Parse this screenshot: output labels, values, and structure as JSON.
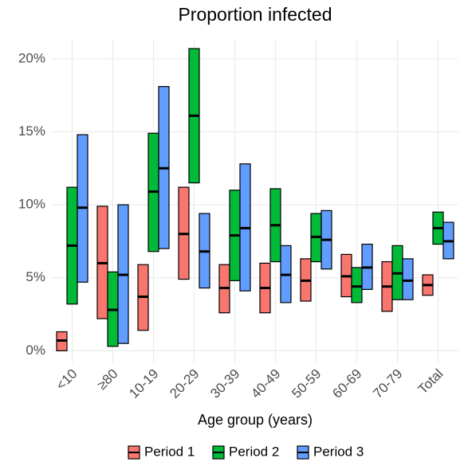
{
  "chart_data": {
    "type": "crossbar",
    "title": "Proportion infected",
    "x_label": "Age group (years)",
    "categories": [
      "<10",
      "≥80",
      "10-19",
      "20-29",
      "30-39",
      "40-49",
      "50-59",
      "60-69",
      "70-79",
      "Total"
    ],
    "series": [
      {
        "name": "Period 1",
        "color": "#f8766d",
        "low": [
          0,
          2.2,
          1.4,
          4.9,
          2.6,
          2.6,
          3.4,
          3.7,
          2.7,
          3.8
        ],
        "values": [
          0.7,
          6.0,
          3.7,
          8.0,
          4.3,
          4.3,
          4.8,
          5.1,
          4.4,
          4.5
        ],
        "high": [
          1.3,
          9.9,
          5.9,
          11.2,
          5.9,
          6.0,
          6.3,
          6.6,
          6.1,
          5.2
        ]
      },
      {
        "name": "Period 2",
        "color": "#00ba38",
        "low": [
          3.2,
          0.3,
          6.8,
          11.5,
          4.8,
          6.1,
          6.1,
          3.3,
          3.5,
          7.3
        ],
        "values": [
          7.2,
          2.8,
          10.9,
          16.1,
          7.9,
          8.6,
          7.8,
          4.4,
          5.3,
          8.4
        ],
        "high": [
          11.2,
          5.4,
          14.9,
          20.7,
          11.0,
          11.1,
          9.4,
          5.7,
          7.2,
          9.5
        ]
      },
      {
        "name": "Period 3",
        "color": "#619cff",
        "low": [
          4.7,
          0.5,
          7.0,
          4.3,
          4.1,
          3.3,
          5.6,
          4.2,
          3.5,
          6.3
        ],
        "values": [
          9.8,
          5.2,
          12.5,
          6.8,
          8.4,
          5.2,
          7.6,
          5.7,
          4.8,
          7.5
        ],
        "high": [
          14.8,
          10.0,
          18.1,
          9.4,
          12.8,
          7.2,
          9.6,
          7.3,
          6.3,
          8.8
        ]
      }
    ],
    "ylim": [
      -0.8,
      21.3
    ],
    "yticks": [
      {
        "value": 0,
        "label": "0%"
      },
      {
        "value": 5,
        "label": "5%"
      },
      {
        "value": 10,
        "label": "10%"
      },
      {
        "value": 15,
        "label": "15%"
      },
      {
        "value": 20,
        "label": "20%"
      }
    ],
    "grid": true,
    "legend": "bottom"
  }
}
